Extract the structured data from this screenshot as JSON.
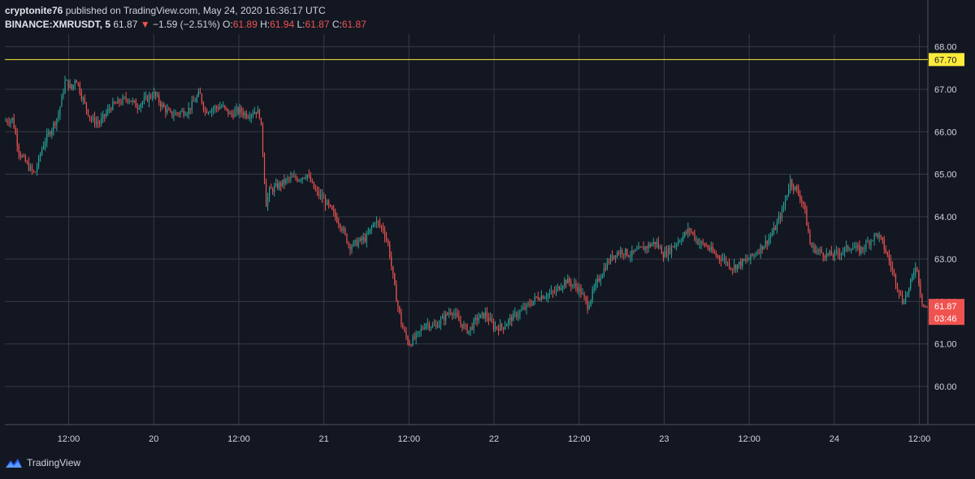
{
  "header": {
    "publisher": "cryptonite76",
    "published_text": "published on TradingView.com, May 24, 2020 16:36:17 UTC",
    "symbol": "BINANCE:XMRUSDT, 5",
    "last": "61.87",
    "change": "−1.59 (−2.51%)",
    "o_label": "O:",
    "o_value": "61.89",
    "h_label": "H:",
    "h_value": "61.94",
    "l_label": "L:",
    "l_value": "61.87",
    "c_label": "C:",
    "c_value": "61.87"
  },
  "footer": {
    "brand": "TradingView",
    "logo_icon": "tradingview-logo-icon"
  },
  "colors": {
    "background": "#131722",
    "grid": "#363a45",
    "up": "#26a69a",
    "down": "#ef5350",
    "level": "#ffeb3b",
    "text": "#d1d4dc"
  },
  "chart_data": {
    "type": "candlestick",
    "symbol": "BINANCE:XMRUSDT",
    "interval": "5",
    "ylim": [
      59.1,
      68.3
    ],
    "y_ticks": [
      "68.00",
      "67.00",
      "66.00",
      "65.00",
      "64.00",
      "63.00",
      "62.00",
      "61.00",
      "60.00"
    ],
    "x_ticks": [
      "12:00",
      "20",
      "12:00",
      "21",
      "12:00",
      "22",
      "12:00",
      "23",
      "12:00",
      "24",
      "12:00"
    ],
    "x_range_days": [
      19.125,
      24.55
    ],
    "grid": true,
    "horizontal_line": {
      "value": 67.7,
      "label": "67.70"
    },
    "last_price": {
      "value": 61.87,
      "label": "61.87",
      "countdown": "03:46"
    },
    "price_path": [
      [
        19.125,
        66.25
      ],
      [
        19.17,
        66.3
      ],
      [
        19.21,
        65.5
      ],
      [
        19.26,
        65.2
      ],
      [
        19.3,
        65.0
      ],
      [
        19.35,
        65.7
      ],
      [
        19.39,
        66.0
      ],
      [
        19.44,
        66.4
      ],
      [
        19.48,
        67.2
      ],
      [
        19.52,
        67.0
      ],
      [
        19.54,
        67.3
      ],
      [
        19.58,
        66.8
      ],
      [
        19.63,
        66.3
      ],
      [
        19.68,
        66.2
      ],
      [
        19.75,
        66.6
      ],
      [
        19.8,
        66.7
      ],
      [
        19.85,
        66.8
      ],
      [
        19.9,
        66.6
      ],
      [
        20.0,
        66.9
      ],
      [
        20.05,
        66.6
      ],
      [
        20.1,
        66.4
      ],
      [
        20.2,
        66.5
      ],
      [
        20.27,
        66.9
      ],
      [
        20.3,
        66.5
      ],
      [
        20.4,
        66.6
      ],
      [
        20.45,
        66.4
      ],
      [
        20.5,
        66.5
      ],
      [
        20.55,
        66.4
      ],
      [
        20.6,
        66.5
      ],
      [
        20.625,
        66.4
      ],
      [
        20.64,
        65.6
      ],
      [
        20.66,
        64.3
      ],
      [
        20.68,
        64.6
      ],
      [
        20.72,
        64.7
      ],
      [
        20.8,
        64.9
      ],
      [
        20.85,
        64.9
      ],
      [
        20.9,
        65.0
      ],
      [
        20.95,
        64.6
      ],
      [
        21.0,
        64.4
      ],
      [
        21.05,
        64.1
      ],
      [
        21.1,
        63.8
      ],
      [
        21.15,
        63.3
      ],
      [
        21.2,
        63.4
      ],
      [
        21.25,
        63.5
      ],
      [
        21.3,
        63.9
      ],
      [
        21.35,
        63.7
      ],
      [
        21.38,
        63.3
      ],
      [
        21.42,
        62.2
      ],
      [
        21.46,
        61.4
      ],
      [
        21.5,
        61.0
      ],
      [
        21.55,
        61.2
      ],
      [
        21.6,
        61.5
      ],
      [
        21.65,
        61.4
      ],
      [
        21.7,
        61.6
      ],
      [
        21.75,
        61.8
      ],
      [
        21.8,
        61.5
      ],
      [
        21.85,
        61.3
      ],
      [
        21.9,
        61.6
      ],
      [
        21.95,
        61.7
      ],
      [
        22.0,
        61.4
      ],
      [
        22.05,
        61.4
      ],
      [
        22.1,
        61.6
      ],
      [
        22.2,
        61.9
      ],
      [
        22.25,
        62.1
      ],
      [
        22.35,
        62.2
      ],
      [
        22.42,
        62.5
      ],
      [
        22.46,
        62.4
      ],
      [
        22.5,
        62.3
      ],
      [
        22.55,
        61.9
      ],
      [
        22.6,
        62.4
      ],
      [
        22.65,
        62.8
      ],
      [
        22.7,
        63.1
      ],
      [
        22.75,
        63.2
      ],
      [
        22.8,
        63.1
      ],
      [
        22.85,
        63.2
      ],
      [
        22.9,
        63.3
      ],
      [
        22.95,
        63.4
      ],
      [
        23.0,
        63.1
      ],
      [
        23.05,
        63.3
      ],
      [
        23.1,
        63.5
      ],
      [
        23.15,
        63.7
      ],
      [
        23.2,
        63.4
      ],
      [
        23.25,
        63.3
      ],
      [
        23.3,
        63.1
      ],
      [
        23.35,
        63.0
      ],
      [
        23.4,
        62.8
      ],
      [
        23.45,
        62.9
      ],
      [
        23.5,
        63.0
      ],
      [
        23.55,
        63.2
      ],
      [
        23.6,
        63.4
      ],
      [
        23.65,
        63.7
      ],
      [
        23.7,
        64.2
      ],
      [
        23.74,
        64.85
      ],
      [
        23.78,
        64.6
      ],
      [
        23.82,
        64.3
      ],
      [
        23.86,
        63.3
      ],
      [
        23.9,
        63.2
      ],
      [
        23.95,
        63.1
      ],
      [
        24.0,
        63.1
      ],
      [
        24.05,
        63.2
      ],
      [
        24.1,
        63.3
      ],
      [
        24.15,
        63.2
      ],
      [
        24.2,
        63.4
      ],
      [
        24.25,
        63.6
      ],
      [
        24.28,
        63.4
      ],
      [
        24.32,
        63.0
      ],
      [
        24.36,
        62.5
      ],
      [
        24.4,
        62.0
      ],
      [
        24.44,
        62.3
      ],
      [
        24.48,
        62.9
      ],
      [
        24.52,
        61.9
      ],
      [
        24.55,
        61.87
      ]
    ]
  }
}
